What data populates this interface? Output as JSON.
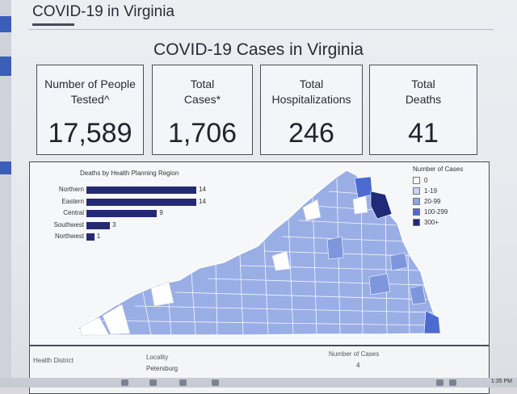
{
  "page": {
    "header": "COVID-19 in Virginia",
    "title": "COVID-19 Cases in Virginia"
  },
  "stats": [
    {
      "label_line1": "Number of People",
      "label_line2": "Tested^",
      "value": "17,589"
    },
    {
      "label_line1": "Total",
      "label_line2": "Cases*",
      "value": "1,706"
    },
    {
      "label_line1": "Total",
      "label_line2": "Hospitalizations",
      "value": "246"
    },
    {
      "label_line1": "Total",
      "label_line2": "Deaths",
      "value": "41"
    }
  ],
  "chart_data": {
    "type": "bar",
    "orientation": "horizontal",
    "title": "Deaths by Health Planning Region",
    "categories": [
      "Northern",
      "Eastern",
      "Central",
      "Southwest",
      "Northwest"
    ],
    "values": [
      14,
      14,
      9,
      3,
      1
    ],
    "color": "#242a72"
  },
  "legend": {
    "title": "Number of Cases",
    "items": [
      {
        "label": "0",
        "color": "#ffffff"
      },
      {
        "label": "1-19",
        "color": "#c9d3f1"
      },
      {
        "label": "20-99",
        "color": "#8fa4e3"
      },
      {
        "label": "100-299",
        "color": "#4d6ad0"
      },
      {
        "label": "300+",
        "color": "#1f2a78"
      }
    ]
  },
  "table": {
    "headers": {
      "district": "Health District",
      "locality": "Locality",
      "cases": "Number of Cases"
    },
    "rows": [
      {
        "locality": "Petersburg",
        "cases": "4"
      }
    ]
  },
  "taskbar": {
    "time": "1:35 PM"
  }
}
